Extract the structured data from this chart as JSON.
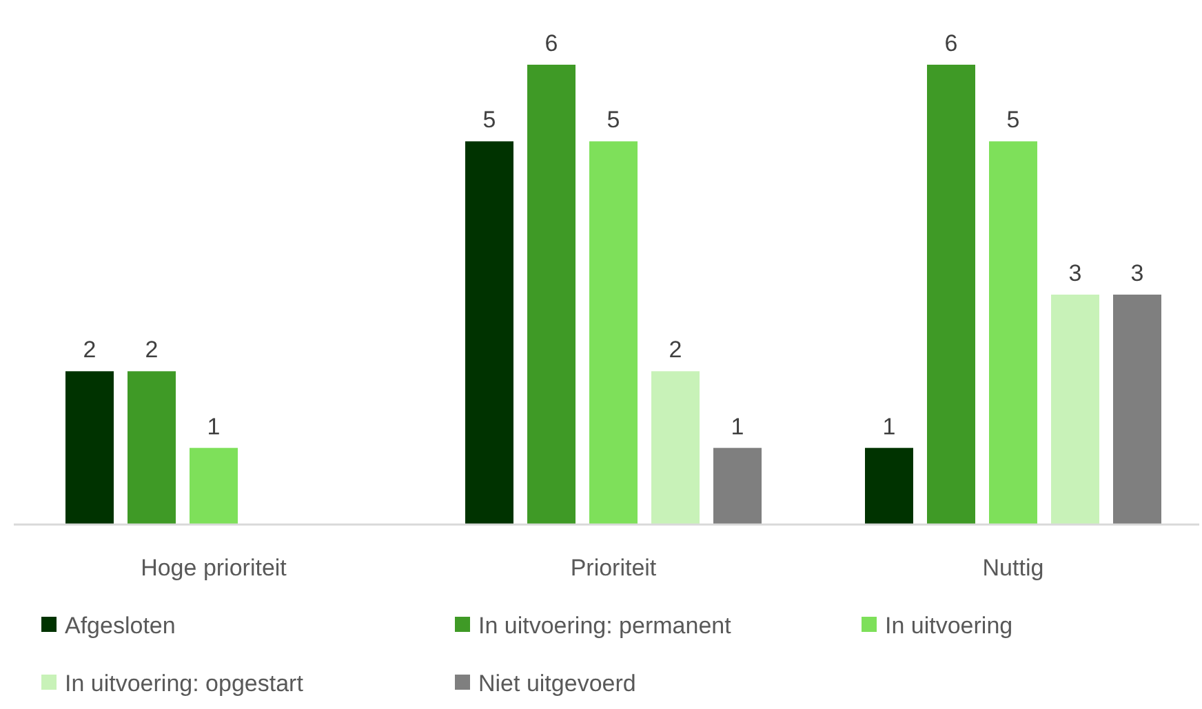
{
  "chart_data": {
    "type": "bar",
    "categories": [
      "Hoge prioriteit",
      "Prioriteit",
      "Nuttig"
    ],
    "series": [
      {
        "name": "Afgesloten",
        "color": "#003300",
        "values": [
          2,
          5,
          1
        ]
      },
      {
        "name": "In uitvoering: permanent",
        "color": "#3f9a26",
        "values": [
          2,
          6,
          6
        ]
      },
      {
        "name": "In uitvoering",
        "color": "#7ee05a",
        "values": [
          1,
          5,
          5
        ]
      },
      {
        "name": "In uitvoering: opgestart",
        "color": "#c8f2b8",
        "values": [
          null,
          2,
          3
        ]
      },
      {
        "name": "Niet uitgevoerd",
        "color": "#7f7f7f",
        "values": [
          null,
          1,
          3
        ]
      }
    ],
    "data_labels": true,
    "legend": "bottom"
  }
}
